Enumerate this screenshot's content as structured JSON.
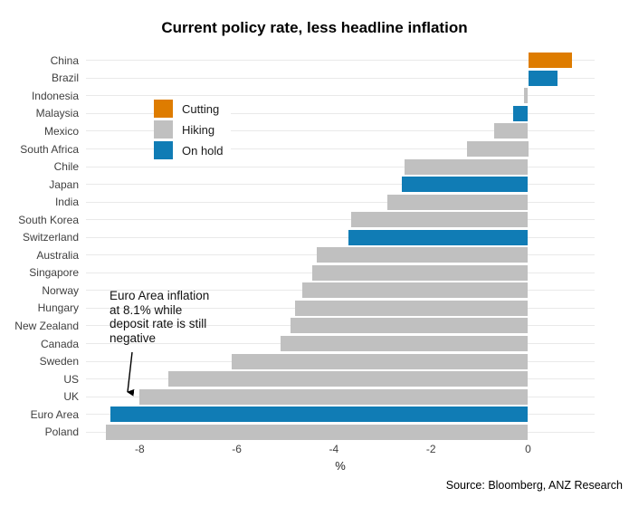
{
  "title": "Current policy rate, less headline inflation",
  "legend": {
    "items": [
      {
        "label": "Cutting",
        "color": "#de7c00"
      },
      {
        "label": "Hiking",
        "color": "#c0c0c0"
      },
      {
        "label": "On hold",
        "color": "#107cb5"
      }
    ]
  },
  "annotation": {
    "text": "Euro Area inflation at 8.1% while deposit rate is still negative"
  },
  "source": "Source: Bloomberg, ANZ Research",
  "chart_data": {
    "type": "bar",
    "orientation": "horizontal",
    "title": "Current policy rate, less headline inflation",
    "xlabel": "%",
    "xlim": [
      -9.1,
      1.4
    ],
    "xticks": [
      -8,
      -6,
      -4,
      -2,
      0
    ],
    "grid": "row-gridlines-only",
    "legend_position": "inside-upper-left",
    "categories": [
      "China",
      "Brazil",
      "Indonesia",
      "Malaysia",
      "Mexico",
      "South Africa",
      "Chile",
      "Japan",
      "India",
      "South Korea",
      "Switzerland",
      "Australia",
      "Singapore",
      "Norway",
      "Hungary",
      "New Zealand",
      "Canada",
      "Sweden",
      "US",
      "UK",
      "Euro Area",
      "Poland"
    ],
    "values": [
      0.9,
      0.6,
      -0.08,
      -0.3,
      -0.7,
      -1.25,
      -2.55,
      -2.6,
      -2.9,
      -3.65,
      -3.7,
      -4.35,
      -4.45,
      -4.65,
      -4.8,
      -4.9,
      -5.1,
      -6.1,
      -7.4,
      -8.0,
      -8.6,
      -8.7
    ],
    "status": [
      "Cutting",
      "On hold",
      "Hiking",
      "On hold",
      "Hiking",
      "Hiking",
      "Hiking",
      "On hold",
      "Hiking",
      "Hiking",
      "On hold",
      "Hiking",
      "Hiking",
      "Hiking",
      "Hiking",
      "Hiking",
      "Hiking",
      "Hiking",
      "Hiking",
      "Hiking",
      "On hold",
      "Hiking"
    ],
    "status_colors": {
      "Cutting": "#de7c00",
      "Hiking": "#c0c0c0",
      "On hold": "#107cb5"
    }
  }
}
